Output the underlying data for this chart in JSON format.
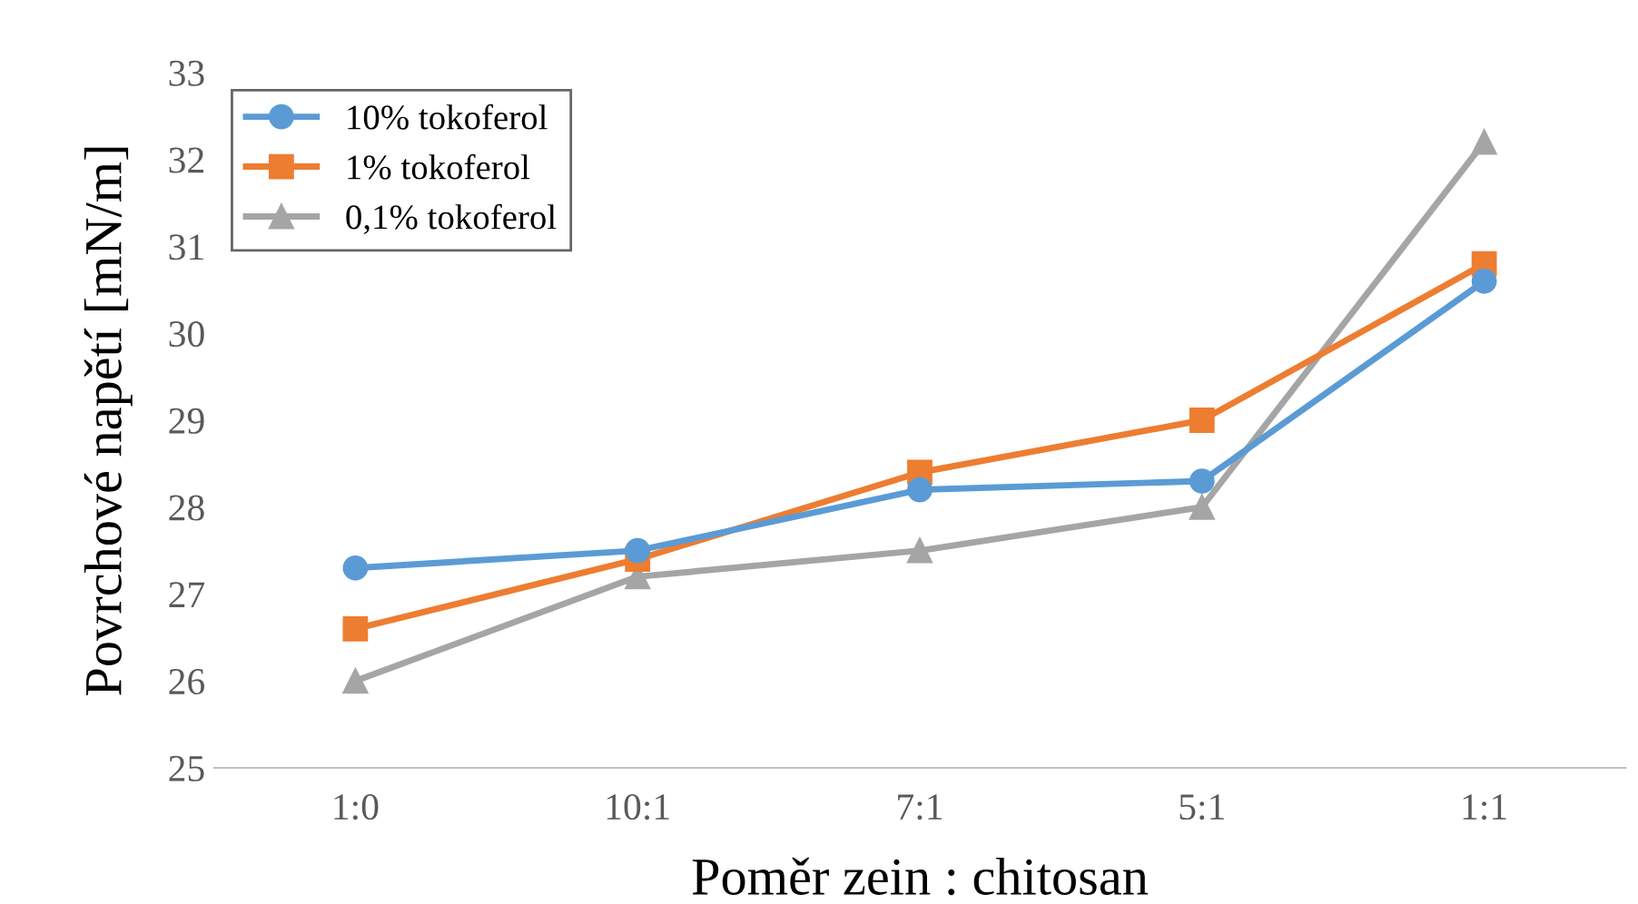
{
  "chart_data": {
    "type": "line",
    "xlabel": "Poměr zein : chitosan",
    "ylabel": "Povrchové napětí [mN/m]",
    "categories": [
      "1:0",
      "10:1",
      "7:1",
      "5:1",
      "1:1"
    ],
    "series": [
      {
        "name": "10% tokoferol",
        "color": "#5b9bd5",
        "marker": "circle",
        "values": [
          27.3,
          27.5,
          28.2,
          28.3,
          30.6
        ]
      },
      {
        "name": "1% tokoferol",
        "color": "#ed7d31",
        "marker": "square",
        "values": [
          26.6,
          27.4,
          28.4,
          29.0,
          30.8
        ]
      },
      {
        "name": "0,1% tokoferol",
        "color": "#a5a5a5",
        "marker": "triangle",
        "values": [
          26.0,
          27.2,
          27.5,
          28.0,
          32.2
        ]
      }
    ],
    "ylim": [
      25,
      33
    ],
    "yticks": [
      25,
      26,
      27,
      28,
      29,
      30,
      31,
      32,
      33
    ],
    "grid": false,
    "legend": "top left",
    "line_style": "solid"
  }
}
